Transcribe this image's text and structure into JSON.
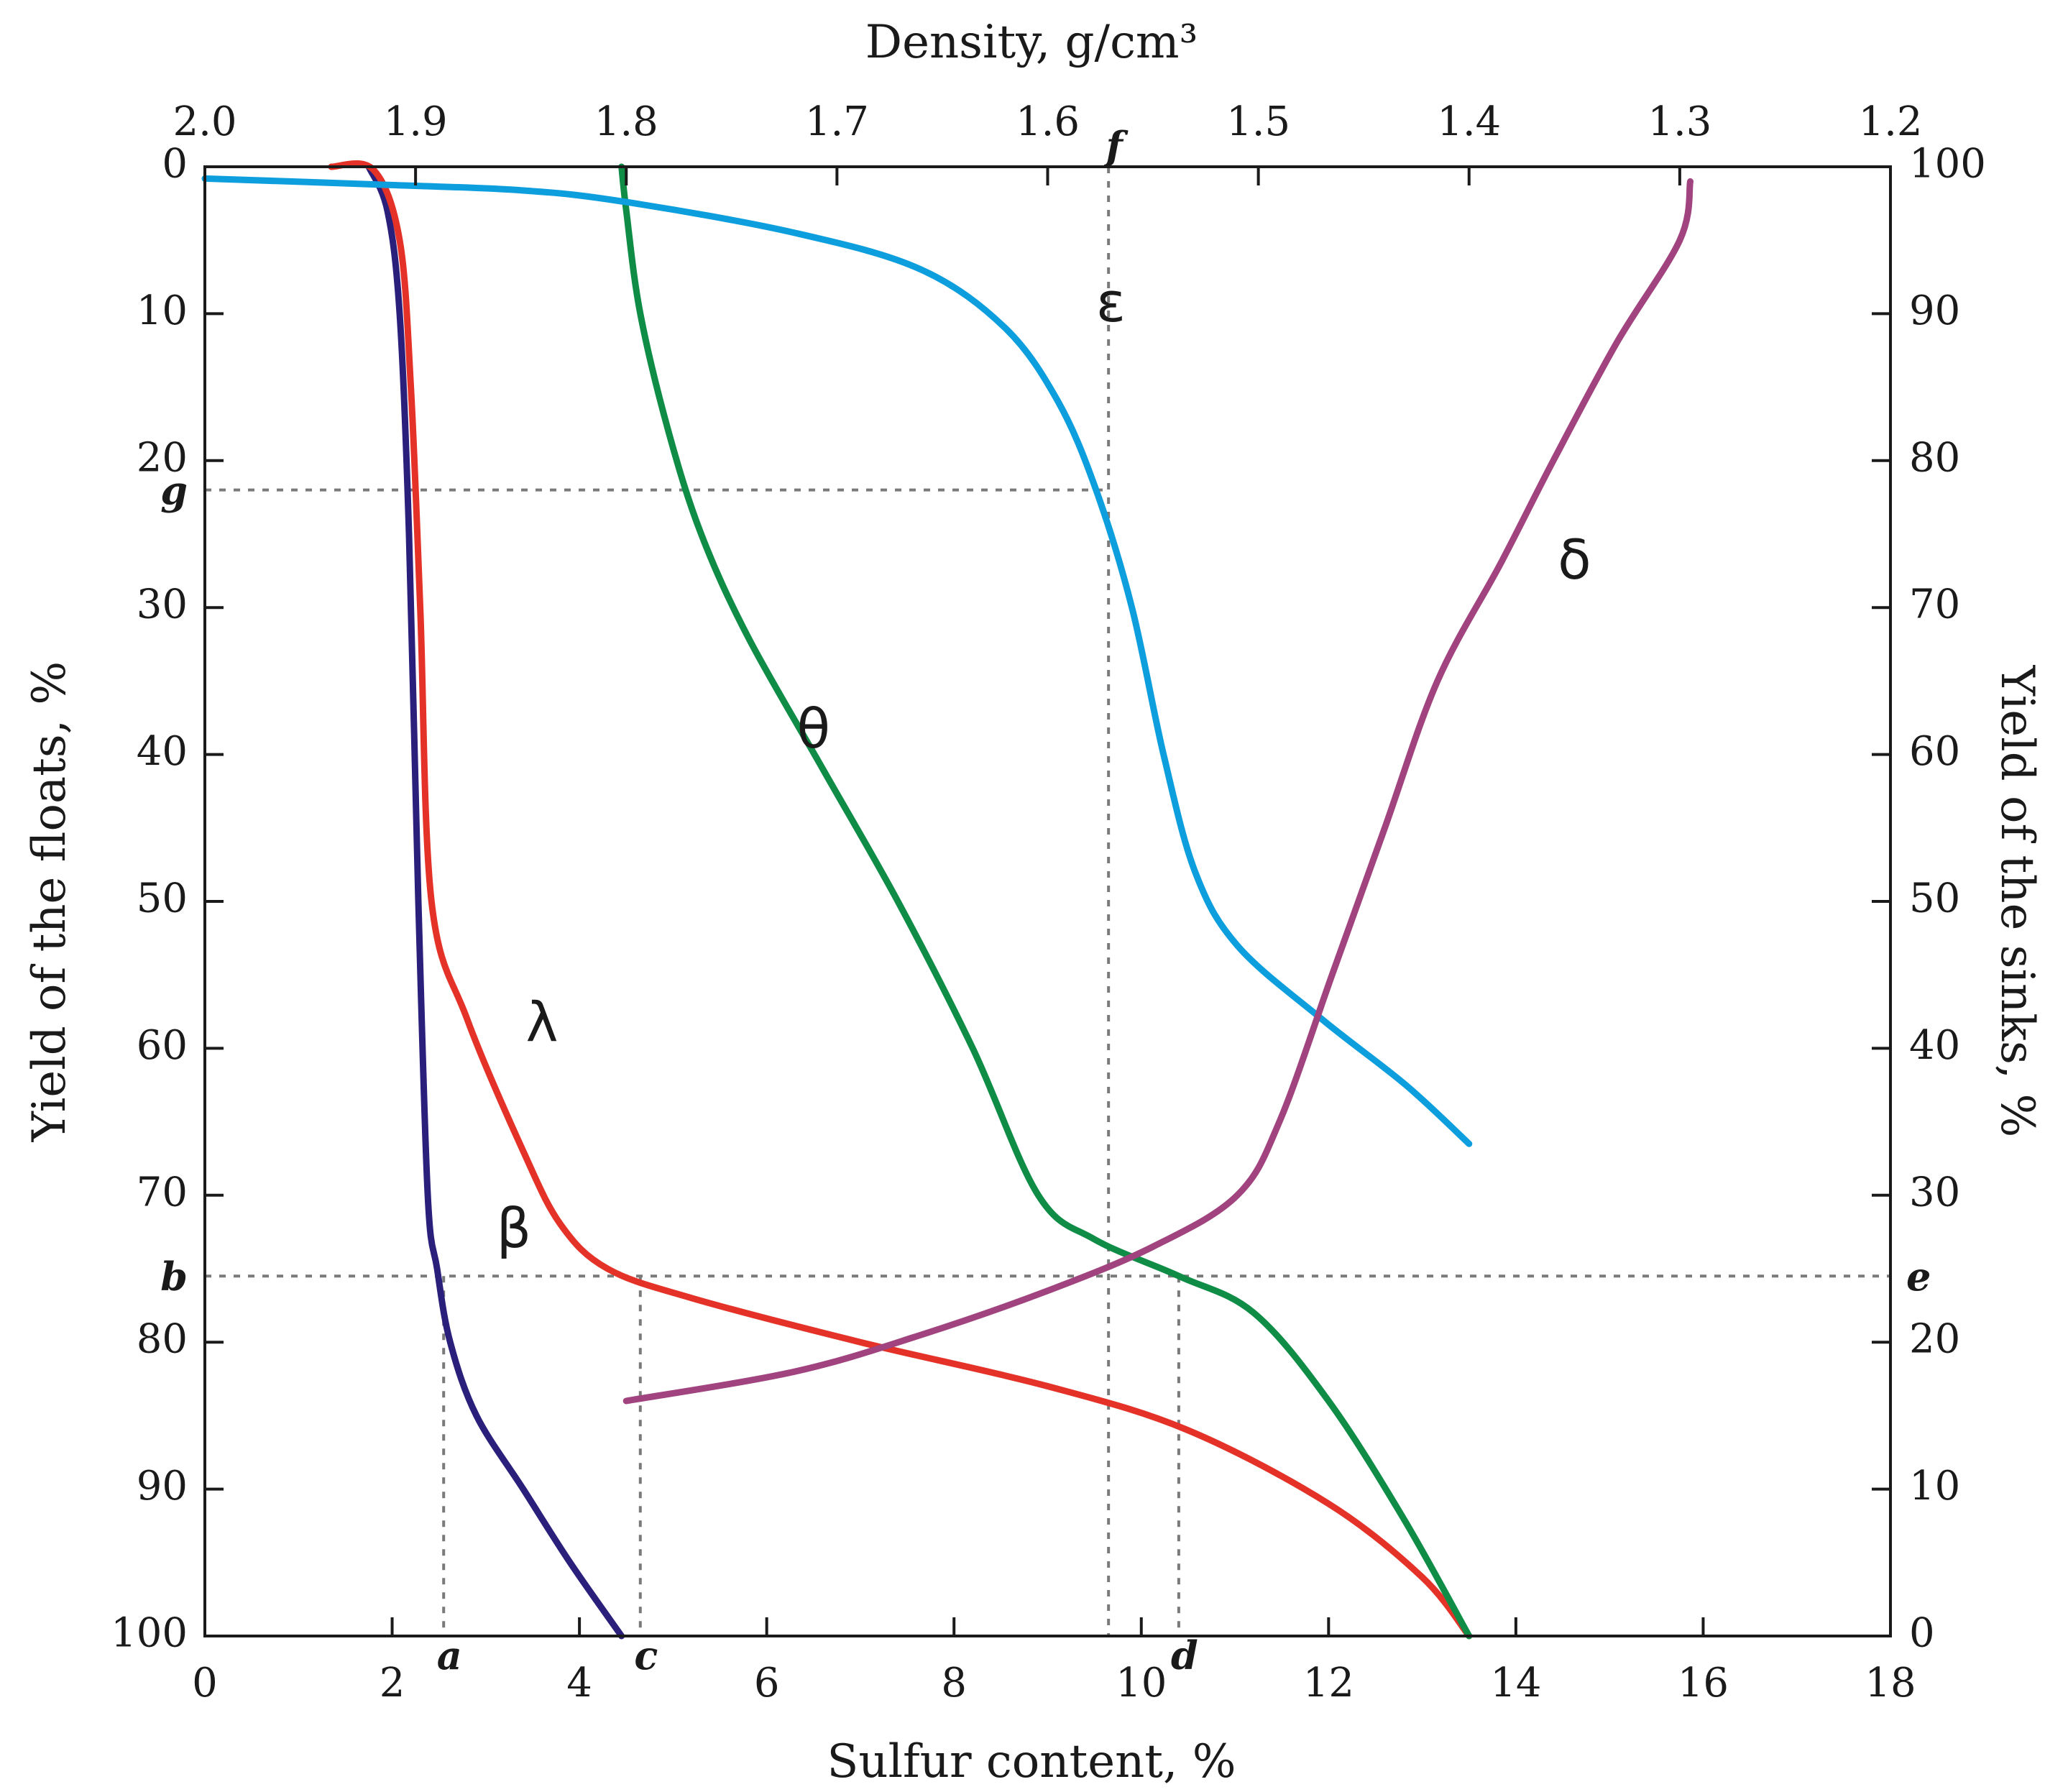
{
  "chart_data": {
    "type": "line",
    "x_bottom": {
      "label": "Sulfur content, %",
      "range": [
        0,
        18
      ],
      "ticks": [
        "0",
        "2",
        "4",
        "6",
        "8",
        "10",
        "12",
        "14",
        "16",
        "18"
      ]
    },
    "x_top": {
      "label": "Density, g/cm³",
      "range": [
        2.0,
        1.2
      ],
      "ticks": [
        "2.0",
        "1.9",
        "1.8",
        "1.7",
        "1.6",
        "1.5",
        "1.4",
        "1.3",
        "1.2"
      ]
    },
    "y_left": {
      "label": "Yield of the floats, %",
      "range": [
        0,
        100
      ],
      "inverted": true,
      "ticks": [
        "0",
        "10",
        "20",
        "30",
        "40",
        "50",
        "60",
        "70",
        "80",
        "90",
        "100"
      ]
    },
    "y_right": {
      "label": "Yield of the sinks, %",
      "range": [
        100,
        0
      ],
      "ticks": [
        "100",
        "90",
        "80",
        "70",
        "60",
        "50",
        "40",
        "30",
        "20",
        "10",
        "0"
      ]
    },
    "series": [
      {
        "name": "β",
        "label": "β",
        "color": "#2a1f7a",
        "axis": "sulfur-floats",
        "label_at": [
          3.3,
          72.5
        ],
        "points": [
          [
            1.75,
            0
          ],
          [
            1.95,
            3
          ],
          [
            2.08,
            10
          ],
          [
            2.18,
            25
          ],
          [
            2.28,
            50
          ],
          [
            2.38,
            70
          ],
          [
            2.48,
            75
          ],
          [
            2.62,
            80
          ],
          [
            2.9,
            85
          ],
          [
            3.4,
            90
          ],
          [
            3.9,
            95
          ],
          [
            4.45,
            100
          ]
        ]
      },
      {
        "name": "λ",
        "label": "λ",
        "color": "#e53228",
        "axis": "sulfur-floats",
        "label_at": [
          3.6,
          58.5
        ],
        "points": [
          [
            1.35,
            0
          ],
          [
            1.8,
            0.2
          ],
          [
            2.08,
            5
          ],
          [
            2.2,
            15
          ],
          [
            2.3,
            30
          ],
          [
            2.42,
            50
          ],
          [
            2.8,
            58
          ],
          [
            3.4,
            67
          ],
          [
            3.8,
            72
          ],
          [
            4.3,
            75
          ],
          [
            5.2,
            77
          ],
          [
            7.0,
            80
          ],
          [
            9.0,
            83
          ],
          [
            10.5,
            86
          ],
          [
            12.0,
            91
          ],
          [
            13.0,
            96
          ],
          [
            13.5,
            100
          ]
        ]
      },
      {
        "name": "θ",
        "label": "θ",
        "color": "#0f8c45",
        "axis": "sulfur-floats",
        "label_at": [
          6.5,
          38.5
        ],
        "points": [
          [
            4.45,
            0
          ],
          [
            4.5,
            3
          ],
          [
            4.65,
            10
          ],
          [
            4.95,
            18
          ],
          [
            5.3,
            25
          ],
          [
            5.8,
            32
          ],
          [
            6.6,
            41
          ],
          [
            7.4,
            50
          ],
          [
            8.2,
            60
          ],
          [
            8.9,
            70
          ],
          [
            9.5,
            73
          ],
          [
            10.4,
            75.5
          ],
          [
            11.2,
            78
          ],
          [
            12.0,
            84
          ],
          [
            12.8,
            92
          ],
          [
            13.5,
            100
          ]
        ]
      },
      {
        "name": "ε",
        "label": "ε",
        "color": "#0d9ede",
        "axis": "density-floats",
        "label_at": [
          1.57,
          9.5
        ],
        "points": [
          [
            2.0,
            0.8
          ],
          [
            1.92,
            1.2
          ],
          [
            1.85,
            1.6
          ],
          [
            1.8,
            2.4
          ],
          [
            1.72,
            4.5
          ],
          [
            1.66,
            7.0
          ],
          [
            1.62,
            11
          ],
          [
            1.595,
            16
          ],
          [
            1.577,
            22
          ],
          [
            1.56,
            30
          ],
          [
            1.545,
            40
          ],
          [
            1.53,
            48
          ],
          [
            1.51,
            53
          ],
          [
            1.47,
            58
          ],
          [
            1.43,
            62.5
          ],
          [
            1.4,
            66.5
          ]
        ]
      },
      {
        "name": "δ",
        "label": "δ",
        "color": "#a0437e",
        "axis": "density-sinks",
        "label_at": [
          1.35,
          73
        ],
        "points": [
          [
            1.8,
            16
          ],
          [
            1.72,
            18
          ],
          [
            1.66,
            20.5
          ],
          [
            1.6,
            23.5
          ],
          [
            1.55,
            26.5
          ],
          [
            1.51,
            30
          ],
          [
            1.49,
            35
          ],
          [
            1.465,
            45
          ],
          [
            1.44,
            55
          ],
          [
            1.415,
            65
          ],
          [
            1.385,
            73
          ],
          [
            1.36,
            80
          ],
          [
            1.33,
            88
          ],
          [
            1.3,
            95
          ],
          [
            1.295,
            99
          ]
        ]
      }
    ],
    "guides": [
      {
        "name": "b-e",
        "from": [
          0,
          75.5
        ],
        "to": [
          18,
          75.5
        ],
        "axis": "sulfur-floats"
      },
      {
        "name": "g",
        "from": [
          0,
          22
        ],
        "to": [
          9.65,
          22
        ],
        "axis": "sulfur-floats"
      },
      {
        "name": "f",
        "from": [
          9.65,
          0
        ],
        "to": [
          9.65,
          100
        ],
        "axis": "sulfur-floats"
      },
      {
        "name": "a",
        "from": [
          2.55,
          75.5
        ],
        "to": [
          2.55,
          100
        ],
        "axis": "sulfur-floats"
      },
      {
        "name": "c",
        "from": [
          4.65,
          75.5
        ],
        "to": [
          4.65,
          100
        ],
        "axis": "sulfur-floats"
      },
      {
        "name": "d",
        "from": [
          10.4,
          75.5
        ],
        "to": [
          10.4,
          100
        ],
        "axis": "sulfur-floats"
      }
    ],
    "point_labels": [
      {
        "text": "a",
        "pos": [
          2.55,
          100
        ],
        "where": "bottom"
      },
      {
        "text": "c",
        "pos": [
          4.65,
          100
        ],
        "where": "bottom"
      },
      {
        "text": "d",
        "pos": [
          10.4,
          100
        ],
        "where": "bottom"
      },
      {
        "text": "f",
        "pos": [
          9.65,
          0
        ],
        "where": "top"
      },
      {
        "text": "g",
        "pos": [
          0,
          22
        ],
        "where": "left"
      },
      {
        "text": "b",
        "pos": [
          0,
          75.5
        ],
        "where": "left"
      },
      {
        "text": "e",
        "pos": [
          18,
          75.5
        ],
        "where": "right"
      }
    ]
  }
}
